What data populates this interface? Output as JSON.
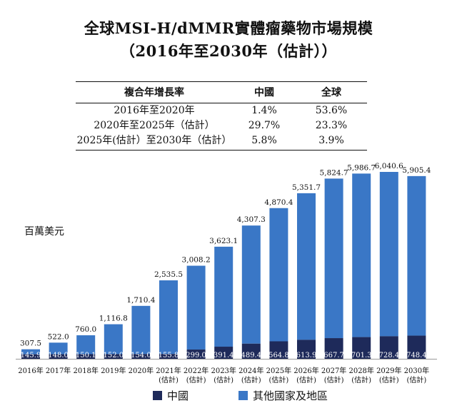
{
  "title_line1": "全球MSI-H/dMMR實體瘤藥物市場規模",
  "title_line2": "（2016年至2030年（估計））",
  "cagr_table": {
    "headers": [
      "複合年增長率",
      "中國",
      "全球"
    ],
    "rows": [
      [
        "2016年至2020年",
        "1.4%",
        "53.6%"
      ],
      [
        "2020年至2025年（估計）",
        "29.7%",
        "23.3%"
      ],
      [
        "2025年(估計）至2030年（估計）",
        "5.8%",
        "3.9%"
      ]
    ]
  },
  "unit_label": "百萬美元",
  "colors": {
    "china": "#1e2a5a",
    "other": "#3a77c6"
  },
  "chart_data": {
    "type": "bar",
    "stacked": true,
    "categories": [
      "2016年",
      "2017年",
      "2018年",
      "2019年",
      "2020年",
      "2021年\n(估計)",
      "2022年\n(估計)",
      "2023年\n(估計)",
      "2024年\n(估計)",
      "2025年\n(估計)",
      "2026年\n(估計)",
      "2027年\n(估計)",
      "2028年\n(估計)",
      "2029年\n(估計)",
      "2030年\n(估計)"
    ],
    "series": [
      {
        "name": "中國",
        "values": [
          145.9,
          148.0,
          150.1,
          152.0,
          154.0,
          155.8,
          299.0,
          391.4,
          489.4,
          564.8,
          613.9,
          667.7,
          701.3,
          728.4,
          748.4
        ]
      },
      {
        "name": "其他國家及地區",
        "values": [
          161.6,
          374.0,
          609.9,
          964.8,
          1556.4,
          2379.7,
          2709.2,
          3231.7,
          3817.9,
          4305.6,
          4737.8,
          5157.0,
          5285.4,
          5312.2,
          5157.0
        ]
      }
    ],
    "totals": [
      307.5,
      522.0,
      760.0,
      1116.8,
      1710.4,
      2535.5,
      3008.2,
      3623.1,
      4307.3,
      4870.4,
      5351.7,
      5824.7,
      5986.7,
      6040.6,
      5905.4
    ],
    "ylim": [
      0,
      6040.6
    ],
    "legend": [
      "中國",
      "其他國家及地區"
    ],
    "legend_position": "bottom"
  }
}
